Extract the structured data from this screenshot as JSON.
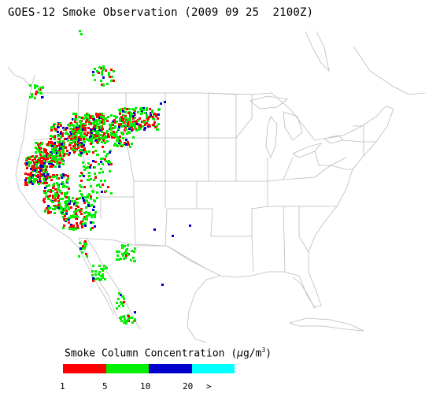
{
  "title": "GOES-12 Smoke Observation (2009 09 25  2100Z)",
  "legend": {
    "title_text": "Smoke Column Concentration (",
    "unit_mu": "μ",
    "unit_rest": "g/m",
    "unit_sup": "3",
    "title_close": ")",
    "bins": [
      {
        "color": "#ff0000"
      },
      {
        "color": "#00ee00"
      },
      {
        "color": "#0000cc"
      },
      {
        "color": "#00ffff"
      }
    ],
    "ticks": [
      "1",
      "5",
      "10",
      "20",
      ">"
    ]
  },
  "colors": {
    "map_lines": "#bbbbbb",
    "background": "#ffffff"
  }
}
